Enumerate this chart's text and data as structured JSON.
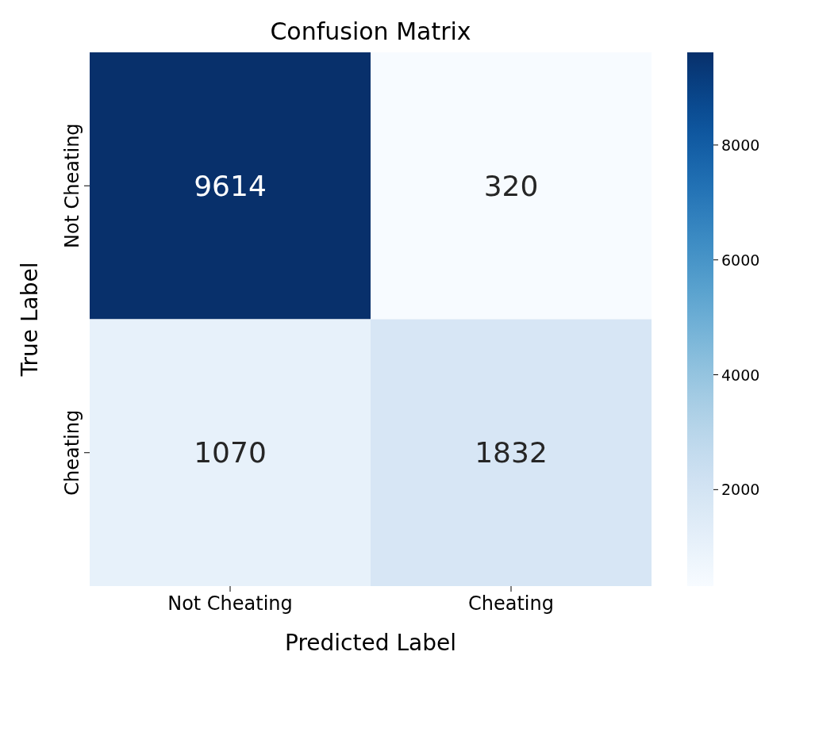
{
  "chart_data": {
    "type": "heatmap",
    "title": "Confusion Matrix",
    "xlabel": "Predicted Label",
    "ylabel": "True Label",
    "categories": [
      "Not Cheating",
      "Cheating"
    ],
    "y_categories": [
      "Not Cheating",
      "Cheating"
    ],
    "cells": [
      [
        9614,
        320
      ],
      [
        1070,
        1832
      ]
    ],
    "clim": [
      320,
      9614
    ],
    "cticks": [
      2000,
      4000,
      6000,
      8000
    ],
    "data_labels": true
  }
}
